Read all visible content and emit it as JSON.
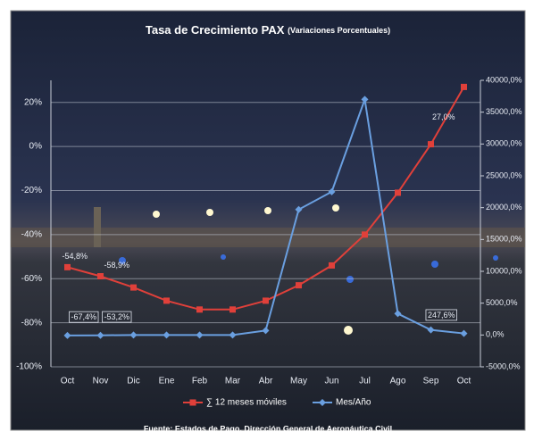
{
  "chart_data": {
    "type": "line",
    "title": "Tasa de Crecimiento PAX",
    "subtitle": "(Variaciones Porcentuales)",
    "source": "Fuente: Estados de Pago, Dirección General de Aeronáutica Civil",
    "categories": [
      "Oct",
      "Nov",
      "Dic",
      "Ene",
      "Feb",
      "Mar",
      "Abr",
      "May",
      "Jun",
      "Jul",
      "Ago",
      "Sep",
      "Oct"
    ],
    "ylim": [
      -100,
      30
    ],
    "yticks": [
      {
        "value": -100,
        "label": "-100%"
      },
      {
        "value": -80,
        "label": "-80%"
      },
      {
        "value": -60,
        "label": "-60%"
      },
      {
        "value": -40,
        "label": "-40%"
      },
      {
        "value": -20,
        "label": "-20%"
      },
      {
        "value": 0,
        "label": "0%"
      },
      {
        "value": 20,
        "label": "20%"
      }
    ],
    "y2lim": [
      -5000,
      40000
    ],
    "y2ticks": [
      {
        "value": -5000,
        "label": "-5000,0%"
      },
      {
        "value": 0,
        "label": "0,0%"
      },
      {
        "value": 5000,
        "label": "5000,0%"
      },
      {
        "value": 10000,
        "label": "10000,0%"
      },
      {
        "value": 15000,
        "label": "15000,0%"
      },
      {
        "value": 20000,
        "label": "20000,0%"
      },
      {
        "value": 25000,
        "label": "25000,0%"
      },
      {
        "value": 30000,
        "label": "30000,0%"
      },
      {
        "value": 35000,
        "label": "35000,0%"
      },
      {
        "value": 40000,
        "label": "40000,0%"
      }
    ],
    "grid": true,
    "series": [
      {
        "name": "∑ 12 meses móviles",
        "color": "#e0403a",
        "marker": "square",
        "values": [
          -54.8,
          -58.9,
          -64,
          -70,
          -74,
          -74,
          -70,
          -63,
          -54,
          -40,
          -21,
          1,
          27.0
        ],
        "value_labels": [
          "-54,8%",
          "-58,9%",
          null,
          null,
          null,
          null,
          null,
          null,
          null,
          null,
          null,
          null,
          "27,0%"
        ]
      },
      {
        "name": "Mes/Año",
        "color": "#6a9fe0",
        "marker": "diamond",
        "axis": "y2",
        "values": [
          -67.4,
          -53.2,
          0,
          0,
          0,
          0,
          700,
          19700,
          22500,
          37000,
          3350,
          800,
          247.6
        ],
        "value_labels": [
          "-67,4%",
          "-53,2%",
          null,
          null,
          null,
          null,
          null,
          null,
          null,
          null,
          null,
          null,
          "247,6%"
        ]
      }
    ]
  }
}
